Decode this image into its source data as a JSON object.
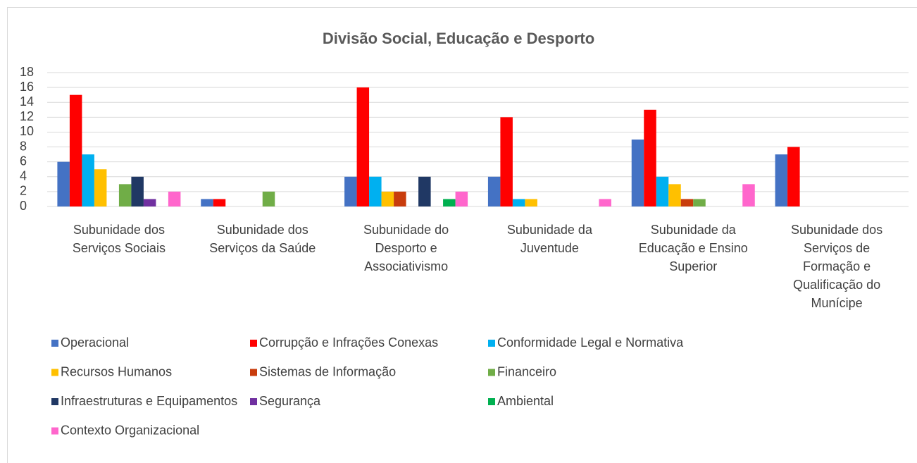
{
  "chart_data": {
    "type": "bar",
    "title": "Divisão Social, Educação e Desporto",
    "categories": [
      "Subunidade dos\nServiços Sociais",
      "Subunidade dos\nServiços da Saúde",
      "Subunidade do\nDesporto e\nAssociativismo",
      "Subunidade da\nJuventude",
      "Subunidade da\nEducação e Ensino\nSuperior",
      "Subunidade dos\nServiços de\nFormação e\nQualificação do\nMunícipe"
    ],
    "series": [
      {
        "name": "Operacional",
        "color": "#4472c4",
        "values": [
          6,
          1,
          4,
          4,
          9,
          7
        ]
      },
      {
        "name": "Corrupção e Infrações Conexas",
        "color": "#ff0000",
        "values": [
          15,
          1,
          16,
          12,
          13,
          8
        ]
      },
      {
        "name": "Conformidade Legal e Normativa",
        "color": "#00b0f0",
        "values": [
          7,
          0,
          4,
          1,
          4,
          0
        ]
      },
      {
        "name": "Recursos Humanos",
        "color": "#ffc000",
        "values": [
          5,
          0,
          2,
          1,
          3,
          0
        ]
      },
      {
        "name": "Sistemas de Informação",
        "color": "#c83c0c",
        "values": [
          0,
          0,
          2,
          0,
          1,
          0
        ]
      },
      {
        "name": "Financeiro",
        "color": "#70ad47",
        "values": [
          3,
          2,
          0,
          0,
          1,
          0
        ]
      },
      {
        "name": "Infraestruturas e Equipamentos",
        "color": "#203864",
        "values": [
          4,
          0,
          4,
          0,
          0,
          0
        ]
      },
      {
        "name": "Segurança",
        "color": "#7030a0",
        "values": [
          1,
          0,
          0,
          0,
          0,
          0
        ]
      },
      {
        "name": "Ambiental",
        "color": "#00b050",
        "values": [
          0,
          0,
          1,
          0,
          0,
          0
        ]
      },
      {
        "name": "Contexto Organizacional",
        "color": "#ff66cc",
        "values": [
          2,
          0,
          2,
          1,
          3,
          0
        ]
      }
    ],
    "ylim": [
      0,
      18
    ],
    "yticks": [
      0,
      2,
      4,
      6,
      8,
      10,
      12,
      14,
      16,
      18
    ],
    "grid": true,
    "legend": "bottom"
  }
}
